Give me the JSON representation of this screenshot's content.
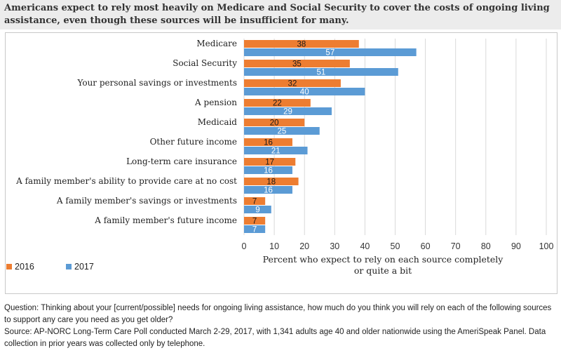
{
  "title": "Americans expect to rely most heavily on Medicare and Social Security to cover the costs of ongoing living assistance, even though these sources will be insufficient for many.",
  "colors": {
    "s2016": "#ED7D31",
    "s2017": "#5B9BD5",
    "grid": "#d9d9d9",
    "title_bg": "#ececec"
  },
  "chart_data": {
    "type": "bar",
    "orientation": "horizontal",
    "categories": [
      "Medicare",
      "Social Security",
      "Your personal savings or investments",
      "A pension",
      "Medicaid",
      "Other future income",
      "Long-term care insurance",
      "A family member's ability to provide care at no cost",
      "A family member's savings or investments",
      "A family member's future income"
    ],
    "series": [
      {
        "name": "2016",
        "color": "#ED7D31",
        "values": [
          38,
          35,
          32,
          22,
          20,
          16,
          17,
          18,
          7,
          7
        ]
      },
      {
        "name": "2017",
        "color": "#5B9BD5",
        "values": [
          57,
          51,
          40,
          29,
          25,
          21,
          16,
          16,
          9,
          7
        ]
      }
    ],
    "xlabel": "Percent who expect to rely on each source completely or quite a bit",
    "xlim": [
      0,
      100
    ],
    "xticks": [
      0,
      10,
      20,
      30,
      40,
      50,
      60,
      70,
      80,
      90,
      100
    ],
    "grid": true,
    "legend": "bottom-left",
    "data_labels": true
  },
  "footer": {
    "question": "Question: Thinking about your [current/possible] needs for ongoing living assistance, how much do you think you will rely on each of the following sources to support any care you need as you get older?",
    "source": "Source: AP-NORC Long-Term Care Poll conducted March 2-29, 2017, with 1,341 adults age 40 and older nationwide using the AmeriSpeak Panel. Data collection in prior years was collected only by telephone."
  }
}
